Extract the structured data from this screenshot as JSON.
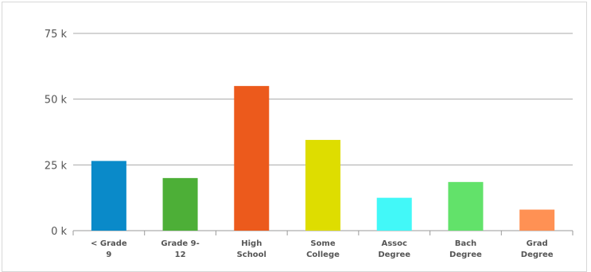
{
  "chart_data": {
    "type": "bar",
    "categories": [
      [
        "< Grade",
        "9"
      ],
      [
        "Grade 9-",
        "12"
      ],
      [
        "High",
        "School"
      ],
      [
        "Some",
        "College"
      ],
      [
        "Assoc",
        "Degree"
      ],
      [
        "Bach",
        "Degree"
      ],
      [
        "Grad",
        "Degree"
      ]
    ],
    "values": [
      26500,
      20000,
      55000,
      34500,
      12500,
      18500,
      8000
    ],
    "colors": [
      "#0a8ac9",
      "#4daf37",
      "#ec5a1c",
      "#dedd00",
      "#42f8f8",
      "#62e26a",
      "#ff9154"
    ],
    "ylim": [
      0,
      75000
    ],
    "yticks": [
      {
        "value": 0,
        "label": "0 k"
      },
      {
        "value": 25000,
        "label": "25 k"
      },
      {
        "value": 50000,
        "label": "50 k"
      },
      {
        "value": 75000,
        "label": "75 k"
      }
    ],
    "grid": true,
    "legend": "none",
    "title": "",
    "xlabel": "",
    "ylabel": ""
  }
}
